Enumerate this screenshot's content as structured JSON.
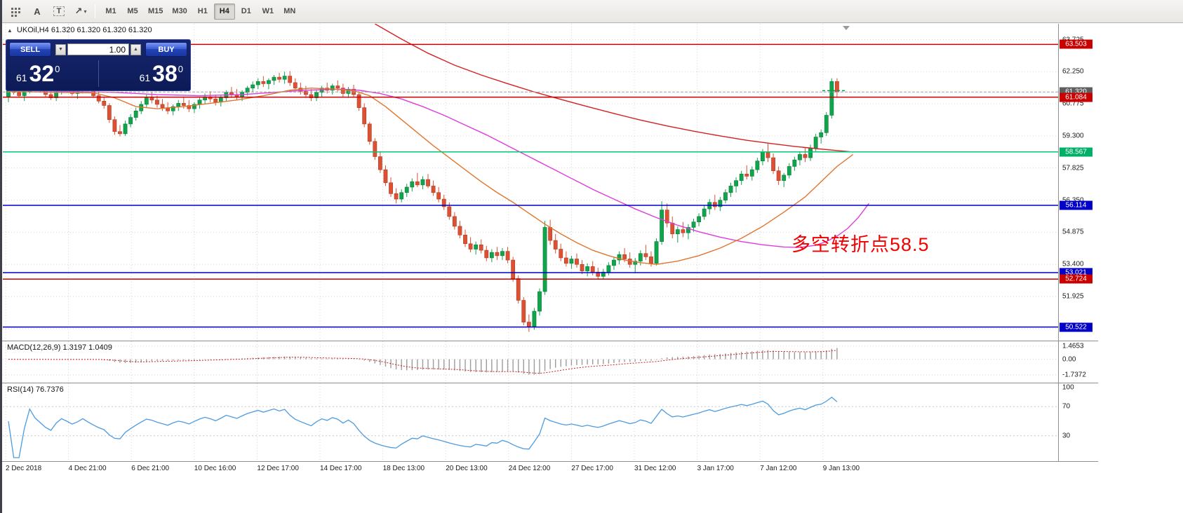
{
  "toolbar": {
    "tools": {
      "text_a": "A",
      "text_t": "T",
      "arrow": "↗",
      "caret": "▾"
    },
    "timeframes": [
      "M1",
      "M5",
      "M15",
      "M30",
      "H1",
      "H4",
      "D1",
      "W1",
      "MN"
    ],
    "active_timeframe": "H4"
  },
  "chart": {
    "symbol_ohlc": "UKOil,H4 61.320 61.320 61.320 61.320",
    "collapse_arrow": "▲",
    "trade_panel": {
      "sell_label": "SELL",
      "buy_label": "BUY",
      "volume": "1.00",
      "vol_down_glyph": "▼",
      "vol_up_glyph": "▲",
      "bid_int": "61",
      "bid_pips": "32",
      "bid_sup": "0",
      "ask_int": "61",
      "ask_pips": "38",
      "ask_sup": "0"
    },
    "annotation": {
      "text": "多空转折点58.5",
      "color": "#f20000"
    },
    "price_axis_labels": [
      "63.725",
      "62.250",
      "60.775",
      "59.300",
      "57.825",
      "56.350",
      "54.875",
      "53.400",
      "51.925",
      "50.450"
    ],
    "time_labels": [
      "2 Dec 2018",
      "4 Dec 21:00",
      "6 Dec 21:00",
      "10 Dec 16:00",
      "12 Dec 17:00",
      "14 Dec 17:00",
      "18 Dec 13:00",
      "20 Dec 13:00",
      "24 Dec 12:00",
      "27 Dec 17:00",
      "31 Dec 12:00",
      "3 Jan 17:00",
      "7 Jan 12:00",
      "9 Jan 13:00"
    ],
    "levels": [
      {
        "price": 63.503,
        "label": "63.503",
        "color": "#c80000",
        "badge": "#c80000"
      },
      {
        "price": 61.084,
        "label": "61.084",
        "color": "#c80000",
        "badge": "#c80000"
      },
      {
        "price": 58.567,
        "label": "58.567",
        "color": "#00c878",
        "badge": "#00b068"
      },
      {
        "price": 56.114,
        "label": "56.114",
        "color": "#0000c8",
        "badge": "#0000c8"
      },
      {
        "price": 53.021,
        "label": "53.021",
        "color": "#0000c8",
        "badge": "#0000c8"
      },
      {
        "price": 52.724,
        "label": "52.724",
        "color": "#c80000",
        "badge": "#c80000"
      },
      {
        "price": 50.522,
        "label": "50.522",
        "color": "#0000c8",
        "badge": "#0000c8"
      }
    ],
    "bid": {
      "price": 61.32,
      "label": "61.320",
      "badge": "#5e5e5e"
    },
    "ask_marker": {
      "price": 61.38,
      "color": "#00a050"
    },
    "colors": {
      "bull": "#10a44c",
      "bull_border": "#0b7d39",
      "bear": "#dc5134",
      "bear_border": "#b03c22",
      "ma_red": "#d42020",
      "ma_orange": "#e0762e",
      "ma_magenta": "#dd3cdd",
      "grid": "#d4d4d4"
    }
  },
  "macd": {
    "label": "MACD(12,26,9) 1.3197 1.0409",
    "axis_values": [
      "1.4653",
      "0.00",
      "-1.7372"
    ],
    "fast": 12,
    "slow": 26,
    "signal_period": 9,
    "histogram_color": "#9c9c9c",
    "signal_color": "#cc2020"
  },
  "rsi": {
    "label": "RSI(14) 76.7376",
    "period": 14,
    "axis_values": [
      "100",
      "70",
      "30"
    ],
    "levels": [
      70,
      30
    ],
    "color": "#4d9be0"
  },
  "chart_data": {
    "type": "candlestick",
    "symbol": "UKOil",
    "timeframe": "H4",
    "ylim": [
      49.9,
      64.45
    ],
    "current_bid": 61.32,
    "current_ask": 61.38,
    "ohlc": [
      [
        61.1,
        61.55,
        60.85,
        61.45
      ],
      [
        61.45,
        61.7,
        61.2,
        61.3
      ],
      [
        61.3,
        61.6,
        61.05,
        61.15
      ],
      [
        61.15,
        61.45,
        60.9,
        61.35
      ],
      [
        61.35,
        61.9,
        61.25,
        61.75
      ],
      [
        61.75,
        61.95,
        61.4,
        61.55
      ],
      [
        61.55,
        61.8,
        61.3,
        61.4
      ],
      [
        61.4,
        61.65,
        61.1,
        61.2
      ],
      [
        61.2,
        61.5,
        60.95,
        61.05
      ],
      [
        61.05,
        61.45,
        60.9,
        61.35
      ],
      [
        61.35,
        61.75,
        61.2,
        61.6
      ],
      [
        61.6,
        61.85,
        61.35,
        61.45
      ],
      [
        61.45,
        61.7,
        61.15,
        61.25
      ],
      [
        61.25,
        61.55,
        61.0,
        61.4
      ],
      [
        61.4,
        61.8,
        61.25,
        61.65
      ],
      [
        61.65,
        61.9,
        61.3,
        61.4
      ],
      [
        61.4,
        61.6,
        61.05,
        61.15
      ],
      [
        61.15,
        61.35,
        60.8,
        60.9
      ],
      [
        60.9,
        61.1,
        60.55,
        60.7
      ],
      [
        60.7,
        60.8,
        59.9,
        60.05
      ],
      [
        60.05,
        60.2,
        59.35,
        59.5
      ],
      [
        59.5,
        59.8,
        59.28,
        59.4
      ],
      [
        59.4,
        60.0,
        59.3,
        59.85
      ],
      [
        59.85,
        60.3,
        59.7,
        60.15
      ],
      [
        60.15,
        60.6,
        60.0,
        60.45
      ],
      [
        60.45,
        60.9,
        60.3,
        60.75
      ],
      [
        60.75,
        61.2,
        60.6,
        61.05
      ],
      [
        61.05,
        61.3,
        60.8,
        60.95
      ],
      [
        60.95,
        61.15,
        60.6,
        60.75
      ],
      [
        60.75,
        61.0,
        60.45,
        60.6
      ],
      [
        60.6,
        60.85,
        60.3,
        60.45
      ],
      [
        60.45,
        60.75,
        60.25,
        60.65
      ],
      [
        60.65,
        60.95,
        60.45,
        60.8
      ],
      [
        60.8,
        61.1,
        60.55,
        60.7
      ],
      [
        60.7,
        60.95,
        60.4,
        60.55
      ],
      [
        60.55,
        60.85,
        60.35,
        60.75
      ],
      [
        60.75,
        61.05,
        60.55,
        60.95
      ],
      [
        60.95,
        61.25,
        60.75,
        61.1
      ],
      [
        61.1,
        61.35,
        60.85,
        61.0
      ],
      [
        61.0,
        61.2,
        60.7,
        60.85
      ],
      [
        60.85,
        61.15,
        60.65,
        61.05
      ],
      [
        61.05,
        61.4,
        60.9,
        61.3
      ],
      [
        61.3,
        61.55,
        61.05,
        61.2
      ],
      [
        61.2,
        61.45,
        60.95,
        61.1
      ],
      [
        61.1,
        61.4,
        60.9,
        61.3
      ],
      [
        61.3,
        61.6,
        61.15,
        61.5
      ],
      [
        61.5,
        61.8,
        61.3,
        61.65
      ],
      [
        61.65,
        61.95,
        61.45,
        61.8
      ],
      [
        61.8,
        62.05,
        61.55,
        61.7
      ],
      [
        61.7,
        61.95,
        61.45,
        61.85
      ],
      [
        61.85,
        62.1,
        61.65,
        62.0
      ],
      [
        62.0,
        62.2,
        61.75,
        61.9
      ],
      [
        61.9,
        62.25,
        61.7,
        62.05
      ],
      [
        62.05,
        62.28,
        61.6,
        61.75
      ],
      [
        61.75,
        61.95,
        61.35,
        61.5
      ],
      [
        61.5,
        61.75,
        61.2,
        61.35
      ],
      [
        61.35,
        61.6,
        61.05,
        61.2
      ],
      [
        61.2,
        61.45,
        60.9,
        61.05
      ],
      [
        61.05,
        61.4,
        60.9,
        61.3
      ],
      [
        61.3,
        61.6,
        61.1,
        61.5
      ],
      [
        61.5,
        61.75,
        61.25,
        61.4
      ],
      [
        61.4,
        61.7,
        61.2,
        61.6
      ],
      [
        61.6,
        61.85,
        61.35,
        61.5
      ],
      [
        61.5,
        61.7,
        61.1,
        61.25
      ],
      [
        61.25,
        61.55,
        61.05,
        61.45
      ],
      [
        61.45,
        61.65,
        61.1,
        61.2
      ],
      [
        61.2,
        61.35,
        60.45,
        60.6
      ],
      [
        60.6,
        60.8,
        59.7,
        59.85
      ],
      [
        59.85,
        59.95,
        58.9,
        59.05
      ],
      [
        59.05,
        59.2,
        58.2,
        58.35
      ],
      [
        58.35,
        58.6,
        57.6,
        57.75
      ],
      [
        57.75,
        57.95,
        57.0,
        57.15
      ],
      [
        57.15,
        57.4,
        56.5,
        56.65
      ],
      [
        56.65,
        56.9,
        56.2,
        56.4
      ],
      [
        56.4,
        56.85,
        56.25,
        56.7
      ],
      [
        56.7,
        57.1,
        56.5,
        56.95
      ],
      [
        56.95,
        57.35,
        56.75,
        57.2
      ],
      [
        57.2,
        57.6,
        56.95,
        57.05
      ],
      [
        57.05,
        57.45,
        56.85,
        57.3
      ],
      [
        57.3,
        57.55,
        56.9,
        57.0
      ],
      [
        57.0,
        57.25,
        56.55,
        56.7
      ],
      [
        56.7,
        56.95,
        56.25,
        56.4
      ],
      [
        56.4,
        56.6,
        55.9,
        56.05
      ],
      [
        56.05,
        56.25,
        55.45,
        55.6
      ],
      [
        55.6,
        55.8,
        55.0,
        55.15
      ],
      [
        55.15,
        55.4,
        54.6,
        54.75
      ],
      [
        54.75,
        55.0,
        54.2,
        54.35
      ],
      [
        54.35,
        54.65,
        53.95,
        54.1
      ],
      [
        54.1,
        54.45,
        53.85,
        54.3
      ],
      [
        54.3,
        54.55,
        53.9,
        54.05
      ],
      [
        54.05,
        54.25,
        53.55,
        53.7
      ],
      [
        53.7,
        54.1,
        53.5,
        53.95
      ],
      [
        53.95,
        54.2,
        53.6,
        53.8
      ],
      [
        53.8,
        54.15,
        53.6,
        54.0
      ],
      [
        54.0,
        54.2,
        53.45,
        53.6
      ],
      [
        53.6,
        53.75,
        52.6,
        52.75
      ],
      [
        52.75,
        52.9,
        51.6,
        51.75
      ],
      [
        51.75,
        51.9,
        50.6,
        50.75
      ],
      [
        50.75,
        51.1,
        50.3,
        50.55
      ],
      [
        50.55,
        51.4,
        50.4,
        51.25
      ],
      [
        51.25,
        52.3,
        51.05,
        52.15
      ],
      [
        52.15,
        55.4,
        52.0,
        55.1
      ],
      [
        55.1,
        55.45,
        54.3,
        54.5
      ],
      [
        54.5,
        54.8,
        53.9,
        54.1
      ],
      [
        54.1,
        54.35,
        53.55,
        53.7
      ],
      [
        53.7,
        54.0,
        53.3,
        53.45
      ],
      [
        53.45,
        53.8,
        53.2,
        53.65
      ],
      [
        53.65,
        53.9,
        53.25,
        53.4
      ],
      [
        53.4,
        53.6,
        52.95,
        53.1
      ],
      [
        53.1,
        53.45,
        52.85,
        53.3
      ],
      [
        53.3,
        53.55,
        52.9,
        53.05
      ],
      [
        53.05,
        53.25,
        52.7,
        52.85
      ],
      [
        52.85,
        53.2,
        52.72,
        53.05
      ],
      [
        53.05,
        53.5,
        52.9,
        53.35
      ],
      [
        53.35,
        53.75,
        53.15,
        53.6
      ],
      [
        53.6,
        54.0,
        53.4,
        53.85
      ],
      [
        53.85,
        54.15,
        53.5,
        53.65
      ],
      [
        53.65,
        53.95,
        53.25,
        53.4
      ],
      [
        53.4,
        53.7,
        53.0,
        53.55
      ],
      [
        53.55,
        54.05,
        53.35,
        53.9
      ],
      [
        53.9,
        54.3,
        53.6,
        53.75
      ],
      [
        53.75,
        54.0,
        53.3,
        53.45
      ],
      [
        53.45,
        54.6,
        53.35,
        54.45
      ],
      [
        54.45,
        56.3,
        54.3,
        55.9
      ],
      [
        55.9,
        56.2,
        55.1,
        55.3
      ],
      [
        55.3,
        55.6,
        54.6,
        54.8
      ],
      [
        54.8,
        55.15,
        54.4,
        55.0
      ],
      [
        55.0,
        55.35,
        54.65,
        54.85
      ],
      [
        54.85,
        55.25,
        54.55,
        55.1
      ],
      [
        55.1,
        55.5,
        54.9,
        55.35
      ],
      [
        55.35,
        55.75,
        55.15,
        55.6
      ],
      [
        55.6,
        56.1,
        55.45,
        55.95
      ],
      [
        55.95,
        56.4,
        55.7,
        56.25
      ],
      [
        56.25,
        56.6,
        55.9,
        56.05
      ],
      [
        56.05,
        56.5,
        55.85,
        56.35
      ],
      [
        56.35,
        56.85,
        56.2,
        56.7
      ],
      [
        56.7,
        57.15,
        56.5,
        57.0
      ],
      [
        57.0,
        57.4,
        56.7,
        57.25
      ],
      [
        57.25,
        57.7,
        57.05,
        57.55
      ],
      [
        57.55,
        57.95,
        57.3,
        57.45
      ],
      [
        57.45,
        57.9,
        57.25,
        57.75
      ],
      [
        57.75,
        58.3,
        57.6,
        58.15
      ],
      [
        58.15,
        58.7,
        57.95,
        58.55
      ],
      [
        58.55,
        58.95,
        58.1,
        58.3
      ],
      [
        58.3,
        58.5,
        57.55,
        57.7
      ],
      [
        57.7,
        57.9,
        57.05,
        57.25
      ],
      [
        57.25,
        57.6,
        56.95,
        57.5
      ],
      [
        57.5,
        58.05,
        57.35,
        57.9
      ],
      [
        57.9,
        58.35,
        57.7,
        58.2
      ],
      [
        58.2,
        58.6,
        57.95,
        58.45
      ],
      [
        58.45,
        58.75,
        58.1,
        58.3
      ],
      [
        58.3,
        58.9,
        58.15,
        58.75
      ],
      [
        58.75,
        59.4,
        58.6,
        59.25
      ],
      [
        59.25,
        59.6,
        58.95,
        59.45
      ],
      [
        59.45,
        60.4,
        59.3,
        60.25
      ],
      [
        60.25,
        61.95,
        60.1,
        61.8
      ],
      [
        61.8,
        61.95,
        61.05,
        61.32
      ]
    ],
    "ma_red_points": [
      [
        69,
        64.45
      ],
      [
        74,
        63.75
      ],
      [
        79,
        63.1
      ],
      [
        84,
        62.55
      ],
      [
        89,
        62.1
      ],
      [
        94,
        61.7
      ],
      [
        99,
        61.32
      ],
      [
        104,
        60.98
      ],
      [
        109,
        60.65
      ],
      [
        114,
        60.33
      ],
      [
        119,
        60.03
      ],
      [
        124,
        59.76
      ],
      [
        129,
        59.52
      ],
      [
        134,
        59.3
      ],
      [
        139,
        59.1
      ],
      [
        144,
        58.94
      ],
      [
        148,
        58.82
      ],
      [
        152,
        58.72
      ],
      [
        156,
        58.63
      ],
      [
        159,
        58.56
      ]
    ],
    "ma_orange_points": [
      [
        0,
        61.35
      ],
      [
        8,
        61.3
      ],
      [
        16,
        61.28
      ],
      [
        20,
        61.05
      ],
      [
        24,
        60.65
      ],
      [
        28,
        60.55
      ],
      [
        33,
        60.65
      ],
      [
        38,
        60.8
      ],
      [
        43,
        60.95
      ],
      [
        48,
        61.15
      ],
      [
        53,
        61.4
      ],
      [
        57,
        61.5
      ],
      [
        61,
        61.45
      ],
      [
        65,
        61.38
      ],
      [
        68,
        61.15
      ],
      [
        71,
        60.65
      ],
      [
        74,
        60.05
      ],
      [
        77,
        59.45
      ],
      [
        80,
        58.85
      ],
      [
        83,
        58.3
      ],
      [
        86,
        57.75
      ],
      [
        89,
        57.2
      ],
      [
        92,
        56.7
      ],
      [
        95,
        56.25
      ],
      [
        98,
        55.75
      ],
      [
        101,
        55.25
      ],
      [
        104,
        54.8
      ],
      [
        107,
        54.4
      ],
      [
        110,
        54.05
      ],
      [
        113,
        53.8
      ],
      [
        116,
        53.6
      ],
      [
        119,
        53.48
      ],
      [
        122,
        53.4
      ],
      [
        126,
        53.55
      ],
      [
        130,
        53.8
      ],
      [
        134,
        54.15
      ],
      [
        138,
        54.6
      ],
      [
        142,
        55.15
      ],
      [
        146,
        55.8
      ],
      [
        150,
        56.5
      ],
      [
        153,
        57.2
      ],
      [
        156,
        57.9
      ],
      [
        159,
        58.45
      ]
    ],
    "ma_magenta_points": [
      [
        0,
        61.4
      ],
      [
        10,
        61.35
      ],
      [
        20,
        61.3
      ],
      [
        28,
        61.2
      ],
      [
        36,
        61.15
      ],
      [
        44,
        61.2
      ],
      [
        50,
        61.3
      ],
      [
        56,
        61.4
      ],
      [
        62,
        61.45
      ],
      [
        66,
        61.4
      ],
      [
        70,
        61.25
      ],
      [
        74,
        61.0
      ],
      [
        78,
        60.65
      ],
      [
        82,
        60.25
      ],
      [
        86,
        59.8
      ],
      [
        90,
        59.35
      ],
      [
        94,
        58.85
      ],
      [
        98,
        58.35
      ],
      [
        102,
        57.85
      ],
      [
        106,
        57.35
      ],
      [
        110,
        56.85
      ],
      [
        114,
        56.4
      ],
      [
        118,
        55.95
      ],
      [
        122,
        55.55
      ],
      [
        126,
        55.2
      ],
      [
        130,
        54.9
      ],
      [
        134,
        54.65
      ],
      [
        138,
        54.45
      ],
      [
        142,
        54.3
      ],
      [
        146,
        54.2
      ],
      [
        149,
        54.18
      ],
      [
        152,
        54.28
      ],
      [
        154,
        54.45
      ],
      [
        156,
        54.7
      ],
      [
        158,
        55.05
      ],
      [
        160,
        55.55
      ],
      [
        162,
        56.2
      ]
    ]
  }
}
